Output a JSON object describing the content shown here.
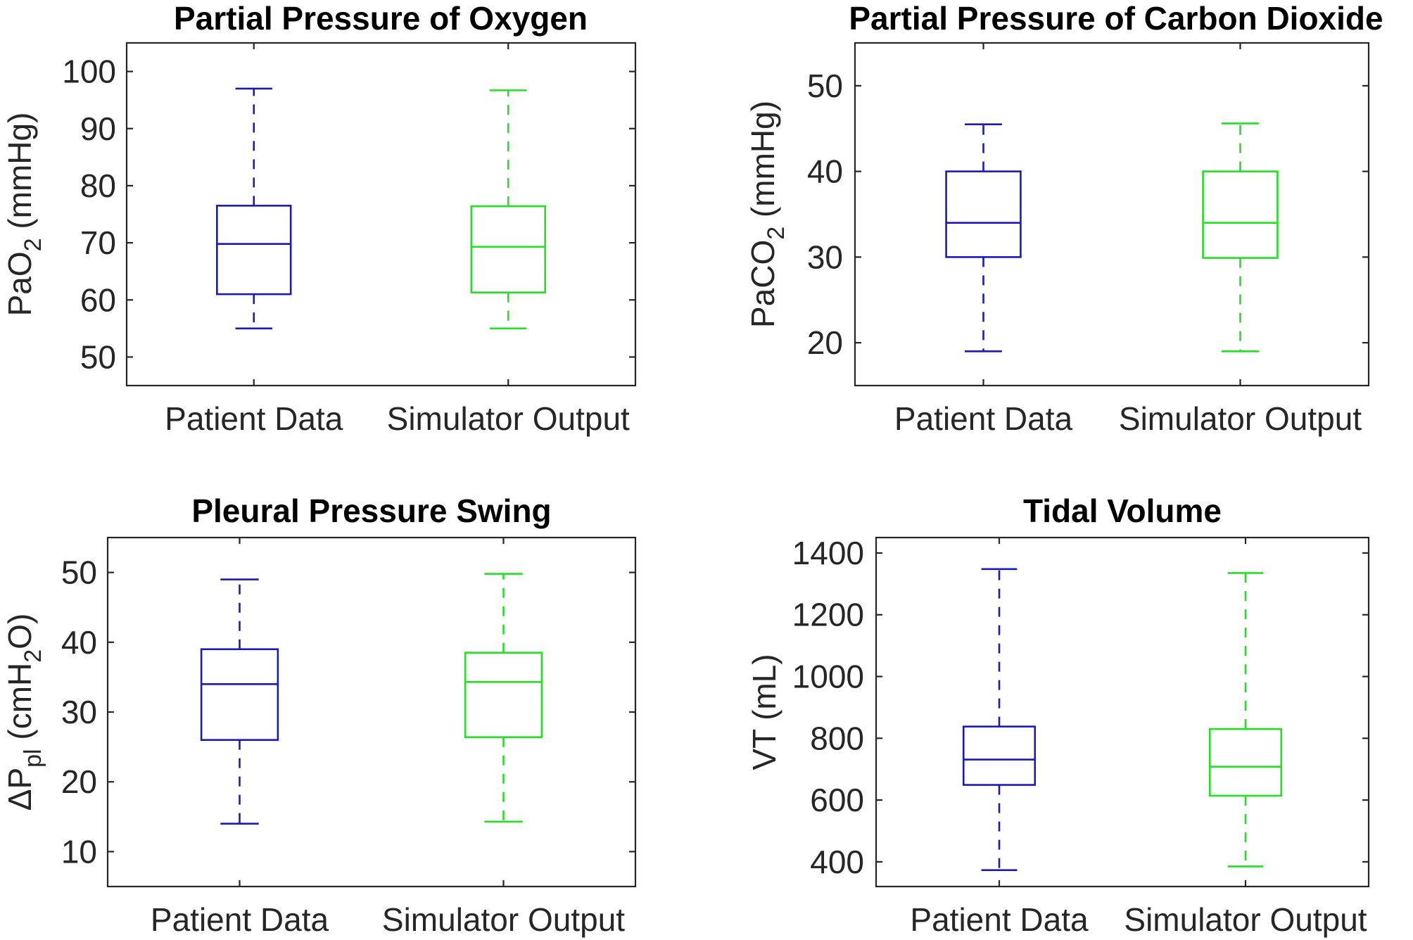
{
  "figure": {
    "colors": {
      "patient": "#1a1ab8",
      "simulator": "#22e022",
      "axis": "#262626"
    }
  },
  "chart_data": [
    {
      "type": "box",
      "title": "Partial Pressure of Oxygen",
      "ylabel": {
        "main": "PaO",
        "sub": "2",
        "rest": " (mmHg)"
      },
      "categories": [
        "Patient Data",
        "Simulator Output"
      ],
      "ylim": [
        45,
        105
      ],
      "yticks": [
        50,
        60,
        70,
        80,
        90,
        100
      ],
      "series": [
        {
          "name": "Patient Data",
          "color": "#1a1ab8",
          "whisker_low": 55.0,
          "q1": 61.0,
          "median": 69.8,
          "q3": 76.5,
          "whisker_high": 97.0
        },
        {
          "name": "Simulator Output",
          "color": "#22e022",
          "whisker_low": 55.0,
          "q1": 61.3,
          "median": 69.3,
          "q3": 76.4,
          "whisker_high": 96.7
        }
      ],
      "grid": false
    },
    {
      "type": "box",
      "title": "Partial Pressure of Carbon Dioxide",
      "ylabel": {
        "main": "PaCO",
        "sub": "2",
        "rest": " (mmHg)"
      },
      "categories": [
        "Patient Data",
        "Simulator Output"
      ],
      "ylim": [
        15,
        55
      ],
      "yticks": [
        20,
        30,
        40,
        50
      ],
      "series": [
        {
          "name": "Patient Data",
          "color": "#1a1ab8",
          "whisker_low": 19.0,
          "q1": 30.0,
          "median": 34.0,
          "q3": 40.0,
          "whisker_high": 45.5
        },
        {
          "name": "Simulator Output",
          "color": "#22e022",
          "whisker_low": 19.0,
          "q1": 29.9,
          "median": 34.0,
          "q3": 40.0,
          "whisker_high": 45.6
        }
      ],
      "grid": false
    },
    {
      "type": "box",
      "title": "Pleural Pressure Swing",
      "ylabel": {
        "main": "ΔP",
        "sub": "pl",
        "rest": " (cmH",
        "sub2": "2",
        "rest2": "O)"
      },
      "categories": [
        "Patient Data",
        "Simulator Output"
      ],
      "ylim": [
        5,
        55
      ],
      "yticks": [
        10,
        20,
        30,
        40,
        50
      ],
      "series": [
        {
          "name": "Patient Data",
          "color": "#1a1ab8",
          "whisker_low": 14.0,
          "q1": 26.0,
          "median": 34.0,
          "q3": 39.0,
          "whisker_high": 49.0
        },
        {
          "name": "Simulator Output",
          "color": "#22e022",
          "whisker_low": 14.3,
          "q1": 26.4,
          "median": 34.3,
          "q3": 38.5,
          "whisker_high": 49.8
        }
      ],
      "grid": false
    },
    {
      "type": "box",
      "title": "Tidal Volume",
      "ylabel": {
        "main": "VT",
        "sub": "",
        "rest": " (mL)"
      },
      "categories": [
        "Patient Data",
        "Simulator Output"
      ],
      "ylim": [
        320,
        1450
      ],
      "yticks": [
        400,
        600,
        800,
        1000,
        1200,
        1400
      ],
      "series": [
        {
          "name": "Patient Data",
          "color": "#1a1ab8",
          "whisker_low": 373,
          "q1": 649,
          "median": 731,
          "q3": 838,
          "whisker_high": 1348
        },
        {
          "name": "Simulator Output",
          "color": "#22e022",
          "whisker_low": 385,
          "q1": 614,
          "median": 708,
          "q3": 830,
          "whisker_high": 1335
        }
      ],
      "grid": false
    }
  ]
}
